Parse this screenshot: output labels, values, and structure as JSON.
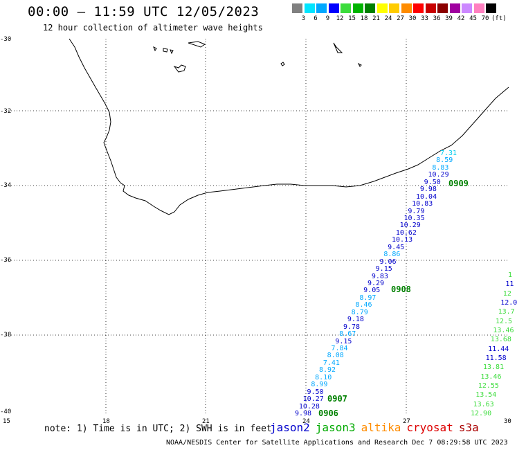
{
  "title": "00:00 — 11:59 UTC 12/05/2023",
  "subtitle": "12 hour collection of altimeter wave heights",
  "colorbar": {
    "unit": "(ft)",
    "segments": [
      {
        "label": "3",
        "color": "#808080"
      },
      {
        "label": "6",
        "color": "#00e5ff"
      },
      {
        "label": "9",
        "color": "#00a8ff"
      },
      {
        "label": "12",
        "color": "#0000ff"
      },
      {
        "label": "15",
        "color": "#3cdc3c"
      },
      {
        "label": "18",
        "color": "#00b400"
      },
      {
        "label": "21",
        "color": "#008000"
      },
      {
        "label": "24",
        "color": "#ffff00"
      },
      {
        "label": "27",
        "color": "#ffcc00"
      },
      {
        "label": "30",
        "color": "#ff8c00"
      },
      {
        "label": "33",
        "color": "#ff0000"
      },
      {
        "label": "36",
        "color": "#c80000"
      },
      {
        "label": "39",
        "color": "#8b0000"
      },
      {
        "label": "42",
        "color": "#a000a0"
      },
      {
        "label": "45",
        "color": "#cc88ff"
      },
      {
        "label": "70",
        "color": "#ff80c0"
      },
      {
        "label": "",
        "color": "#000000"
      }
    ]
  },
  "axes": {
    "lat_labels": [
      "-30",
      "-32",
      "-34",
      "-36",
      "-38",
      "-40"
    ],
    "lon_labels": [
      "15",
      "18",
      "21",
      "24",
      "27",
      "30"
    ]
  },
  "note": "note: 1) Time is in UTC; 2) SWH is in feet",
  "legend": [
    {
      "label": "jason2",
      "color": "#0000cc"
    },
    {
      "label": "jason3",
      "color": "#00aa00"
    },
    {
      "label": "altika",
      "color": "#ff8c00"
    },
    {
      "label": "cryosat",
      "color": "#dd0000"
    },
    {
      "label": "s3a",
      "color": "#aa0000"
    }
  ],
  "credit": "NOAA/NESDIS Center for Satellite Applications and Research   Dec  7 08:29:58 UTC 2023",
  "track_times": [
    "0909",
    "0908",
    "0907",
    "0906"
  ],
  "wave_track_a": [
    {
      "v": "7.31",
      "c": "#00ccee"
    },
    {
      "v": "8.59",
      "c": "#00a8ff"
    },
    {
      "v": "8.83",
      "c": "#00a8ff"
    },
    {
      "v": "10.29",
      "c": "#0000cc"
    },
    {
      "v": "9.50",
      "c": "#0000cc"
    },
    {
      "v": "9.98",
      "c": "#0000cc"
    },
    {
      "v": "10.04",
      "c": "#0000cc"
    },
    {
      "v": "10.83",
      "c": "#0000cc"
    },
    {
      "v": "9.79",
      "c": "#0000cc"
    },
    {
      "v": "10.35",
      "c": "#0000cc"
    },
    {
      "v": "10.29",
      "c": "#0000cc"
    },
    {
      "v": "10.62",
      "c": "#0000cc"
    },
    {
      "v": "10.13",
      "c": "#0000cc"
    },
    {
      "v": "9.45",
      "c": "#0000cc"
    },
    {
      "v": "8.86",
      "c": "#00a8ff"
    },
    {
      "v": "9.06",
      "c": "#0000cc"
    },
    {
      "v": "9.15",
      "c": "#0000cc"
    },
    {
      "v": "9.83",
      "c": "#0000cc"
    },
    {
      "v": "9.29",
      "c": "#0000cc"
    },
    {
      "v": "9.05",
      "c": "#0000cc"
    },
    {
      "v": "8.97",
      "c": "#00a8ff"
    },
    {
      "v": "8.46",
      "c": "#00a8ff"
    },
    {
      "v": "8.79",
      "c": "#00a8ff"
    },
    {
      "v": "9.18",
      "c": "#0000cc"
    },
    {
      "v": "9.78",
      "c": "#0000cc"
    },
    {
      "v": "8.67",
      "c": "#00a8ff"
    },
    {
      "v": "9.15",
      "c": "#0000cc"
    },
    {
      "v": "7.84",
      "c": "#00a8ff"
    },
    {
      "v": "8.08",
      "c": "#00a8ff"
    },
    {
      "v": "7.41",
      "c": "#00a8ff"
    },
    {
      "v": "8.92",
      "c": "#00a8ff"
    },
    {
      "v": "8.10",
      "c": "#00a8ff"
    },
    {
      "v": "8.99",
      "c": "#00a8ff"
    },
    {
      "v": "9.50",
      "c": "#0000cc"
    },
    {
      "v": "10.27",
      "c": "#0000cc"
    },
    {
      "v": "10.28",
      "c": "#0000cc"
    },
    {
      "v": "9.98",
      "c": "#0000cc"
    }
  ],
  "wave_track_b": [
    {
      "v": "1",
      "c": "#3cdc3c"
    },
    {
      "v": "11",
      "c": "#0000cc"
    },
    {
      "v": "12",
      "c": "#3cdc3c"
    },
    {
      "v": "12.0",
      "c": "#0000cc"
    },
    {
      "v": "13.7",
      "c": "#3cdc3c"
    },
    {
      "v": "12.5",
      "c": "#3cdc3c"
    },
    {
      "v": "13.46",
      "c": "#3cdc3c"
    },
    {
      "v": "13.68",
      "c": "#3cdc3c"
    },
    {
      "v": "11.44",
      "c": "#0000cc"
    },
    {
      "v": "11.58",
      "c": "#0000cc"
    },
    {
      "v": "13.81",
      "c": "#3cdc3c"
    },
    {
      "v": "13.46",
      "c": "#3cdc3c"
    },
    {
      "v": "12.55",
      "c": "#3cdc3c"
    },
    {
      "v": "13.54",
      "c": "#3cdc3c"
    },
    {
      "v": "13.63",
      "c": "#3cdc3c"
    },
    {
      "v": "12.90",
      "c": "#3cdc3c"
    }
  ]
}
